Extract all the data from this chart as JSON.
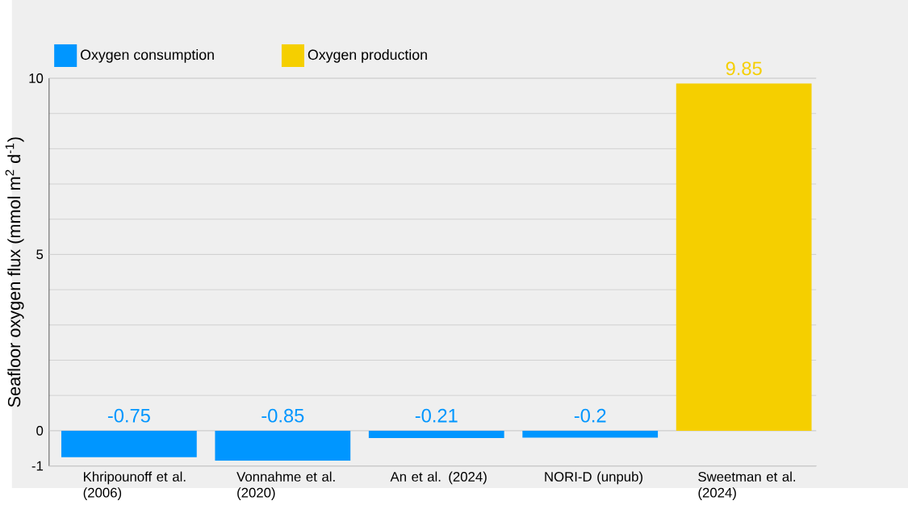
{
  "chart_data": {
    "type": "bar",
    "ylabel": "Seafloor oxygen flux (mmol m$^{2}$ d$^{-1}$)",
    "categories": [
      "Khripounoff et al. (2006)",
      "Vonnahme et al. (2020)",
      "An et al. (2024)",
      "NORI-D (unpub)",
      "Sweetman et al. (2024)"
    ],
    "series": [
      {
        "name": "Oxygen consumption",
        "color": "#0096ff",
        "values": [
          -0.75,
          -0.85,
          -0.21,
          -0.2,
          null
        ]
      },
      {
        "name": "Oxygen production",
        "color": "#f5cf00",
        "values": [
          null,
          null,
          null,
          null,
          9.85
        ]
      }
    ],
    "ylim": [
      -1,
      10
    ],
    "yticks": [
      -1,
      0,
      {
        "value": 1,
        "label": null
      },
      {
        "value": 2,
        "label": null
      },
      {
        "value": 3,
        "label": null
      },
      {
        "value": 4,
        "label": null
      },
      5,
      {
        "value": 6,
        "label": null
      },
      {
        "value": 7,
        "label": null
      },
      {
        "value": 8,
        "label": null
      },
      {
        "value": 9,
        "label": null
      },
      10
    ],
    "grid": "y",
    "legend": "top left",
    "data_labels": true
  }
}
